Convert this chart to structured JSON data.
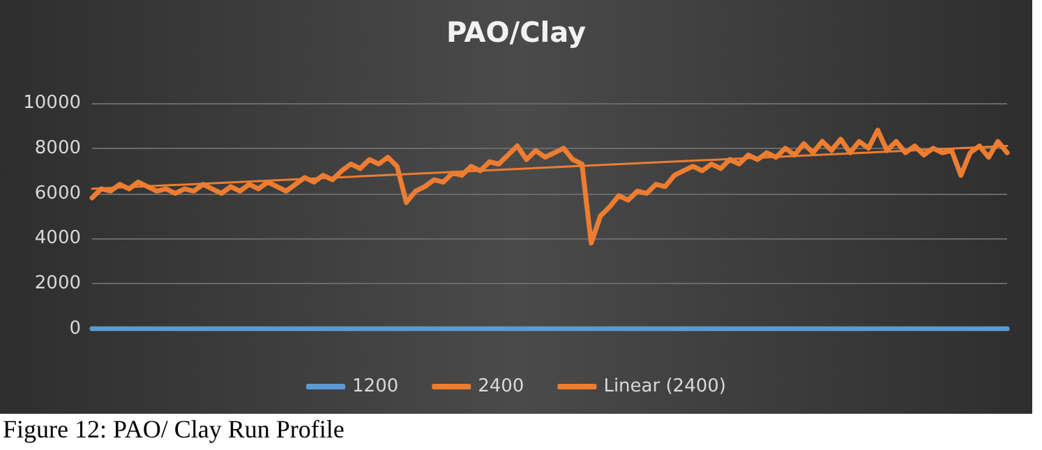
{
  "chart_data": {
    "type": "line",
    "title": "PAO/Clay",
    "annotations": [
      "Figure 12: PAO/ Clay Run Profile"
    ],
    "categories": [
      null,
      null,
      null,
      null,
      null,
      null,
      null,
      null,
      null,
      null,
      null,
      null,
      null,
      null,
      null,
      null,
      null,
      null,
      null,
      null,
      null,
      null,
      null,
      null,
      null,
      null,
      null,
      null,
      null,
      null,
      null,
      null,
      null,
      null,
      null,
      null,
      null,
      null,
      null,
      null,
      null,
      null,
      null,
      null,
      null,
      null,
      null,
      null,
      null,
      null,
      null,
      null,
      null,
      null,
      null,
      null,
      null,
      null,
      null,
      null,
      null,
      null,
      null,
      null,
      null,
      null,
      null,
      null,
      null,
      null,
      null,
      null,
      null,
      null,
      null,
      null,
      null,
      null,
      null,
      null,
      null,
      null,
      null,
      null,
      null,
      null,
      null,
      null,
      null,
      null,
      null,
      null,
      null,
      null,
      null,
      null,
      null,
      null,
      null,
      null
    ],
    "series": [
      {
        "name": "1200",
        "color": "#5b9bd5",
        "values": [
          0,
          0,
          0,
          0,
          0,
          0,
          0,
          0,
          0,
          0,
          0,
          0,
          0,
          0,
          0,
          0,
          0,
          0,
          0,
          0,
          0,
          0,
          0,
          0,
          0,
          0,
          0,
          0,
          0,
          0,
          0,
          0,
          0,
          0,
          0,
          0,
          0,
          0,
          0,
          0,
          0,
          0,
          0,
          0,
          0,
          0,
          0,
          0,
          0,
          0,
          0,
          0,
          0,
          0,
          0,
          0,
          0,
          0,
          0,
          0,
          0,
          0,
          0,
          0,
          0,
          0,
          0,
          0,
          0,
          0,
          0,
          0,
          0,
          0,
          0,
          0,
          0,
          0,
          0,
          0,
          0,
          0,
          0,
          0,
          0,
          0,
          0,
          0,
          0,
          0,
          0,
          0,
          0,
          0,
          0,
          0,
          0,
          0,
          0,
          0
        ]
      },
      {
        "name": "2400",
        "color": "#ed7d31",
        "values": [
          5800,
          6200,
          6100,
          6400,
          6200,
          6500,
          6300,
          6100,
          6200,
          6000,
          6200,
          6100,
          6400,
          6200,
          6000,
          6300,
          6100,
          6400,
          6200,
          6500,
          6300,
          6100,
          6400,
          6700,
          6500,
          6800,
          6600,
          7000,
          7300,
          7100,
          7500,
          7300,
          7600,
          7200,
          5600,
          6100,
          6300,
          6600,
          6500,
          6900,
          6800,
          7200,
          7000,
          7400,
          7300,
          7700,
          8100,
          7500,
          7900,
          7600,
          7800,
          8000,
          7500,
          7300,
          3800,
          5000,
          5400,
          5900,
          5700,
          6100,
          6000,
          6400,
          6300,
          6800,
          7000,
          7200,
          7000,
          7300,
          7100,
          7500,
          7300,
          7700,
          7500,
          7800,
          7600,
          8000,
          7700,
          8200,
          7800,
          8300,
          7900,
          8400,
          7800,
          8300,
          8000,
          8800,
          7900,
          8300,
          7800,
          8100,
          7700,
          8000,
          7800,
          7900,
          6800,
          7800,
          8100,
          7600,
          8300,
          7800
        ]
      },
      {
        "name": "Linear (2400)",
        "color": "#ed7d31",
        "values": [
          6200,
          null,
          null,
          null,
          null,
          null,
          null,
          null,
          null,
          null,
          null,
          null,
          null,
          null,
          null,
          null,
          null,
          null,
          null,
          null,
          null,
          null,
          null,
          null,
          null,
          null,
          null,
          null,
          null,
          null,
          null,
          null,
          null,
          null,
          null,
          null,
          null,
          null,
          null,
          null,
          null,
          null,
          null,
          null,
          null,
          null,
          null,
          null,
          null,
          null,
          null,
          null,
          null,
          null,
          null,
          null,
          null,
          null,
          null,
          null,
          null,
          null,
          null,
          null,
          null,
          null,
          null,
          null,
          null,
          null,
          null,
          null,
          null,
          null,
          null,
          null,
          null,
          null,
          null,
          null,
          null,
          null,
          null,
          null,
          null,
          null,
          null,
          null,
          null,
          null,
          null,
          null,
          null,
          null,
          null,
          null,
          null,
          null,
          null,
          8100
        ]
      }
    ],
    "ylim": [
      0,
      10000
    ],
    "yticks": [
      0,
      2000,
      4000,
      6000,
      8000,
      10000
    ],
    "grid": "y",
    "legend": "bottom",
    "tick_labels": "y",
    "line_style": "solid"
  }
}
